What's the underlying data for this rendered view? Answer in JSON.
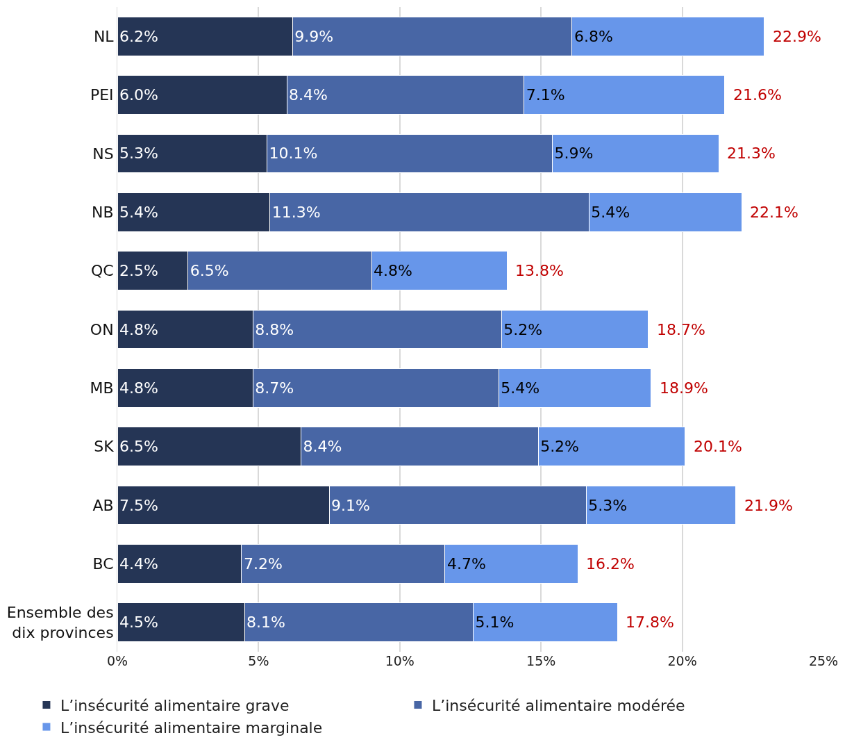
{
  "chart_data": {
    "type": "bar",
    "orientation": "horizontal",
    "stacked": true,
    "categories": [
      "NL",
      "PEI",
      "NS",
      "NB",
      "QC",
      "ON",
      "MB",
      "SK",
      "AB",
      "BC",
      "Ensemble des\ndix provinces"
    ],
    "series": [
      {
        "name": "L’insécurité alimentaire grave",
        "color": "#253555",
        "values": [
          6.2,
          6.0,
          5.3,
          5.4,
          2.5,
          4.8,
          4.8,
          6.5,
          7.5,
          4.4,
          4.5
        ],
        "value_labels": [
          "6.2%",
          "6.0%",
          "5.3%",
          "5.4%",
          "2.5%",
          "4.8%",
          "4.8%",
          "6.5%",
          "7.5%",
          "4.4%",
          "4.5%"
        ]
      },
      {
        "name": "L’insécurité alimentaire modérée",
        "color": "#4866a5",
        "values": [
          9.9,
          8.4,
          10.1,
          11.3,
          6.5,
          8.8,
          8.7,
          8.4,
          9.1,
          7.2,
          8.1
        ],
        "value_labels": [
          "9.9%",
          "8.4%",
          "10.1%",
          "11.3%",
          "6.5%",
          "8.8%",
          "8.7%",
          "8.4%",
          "9.1%",
          "7.2%",
          "8.1%"
        ]
      },
      {
        "name": "L’insécurité alimentaire marginale",
        "color": "#6796ea",
        "values": [
          6.8,
          7.1,
          5.9,
          5.4,
          4.8,
          5.2,
          5.4,
          5.2,
          5.3,
          4.7,
          5.1
        ],
        "value_labels": [
          "6.8%",
          "7.1%",
          "5.9%",
          "5.4%",
          "4.8%",
          "5.2%",
          "5.4%",
          "5.2%",
          "5.3%",
          "4.7%",
          "5.1%"
        ]
      }
    ],
    "totals": [
      "22.9%",
      "21.6%",
      "21.3%",
      "22.1%",
      "13.8%",
      "18.7%",
      "18.9%",
      "20.1%",
      "21.9%",
      "16.2%",
      "17.8%"
    ],
    "xlim": [
      0,
      25
    ],
    "xticks": [
      {
        "value": 0,
        "label": "0%"
      },
      {
        "value": 5,
        "label": "5%"
      },
      {
        "value": 10,
        "label": "10%"
      },
      {
        "value": 15,
        "label": "15%"
      },
      {
        "value": 20,
        "label": "20%"
      },
      {
        "value": 25,
        "label": "25%"
      }
    ],
    "grid": "x",
    "legend": "bottom"
  }
}
